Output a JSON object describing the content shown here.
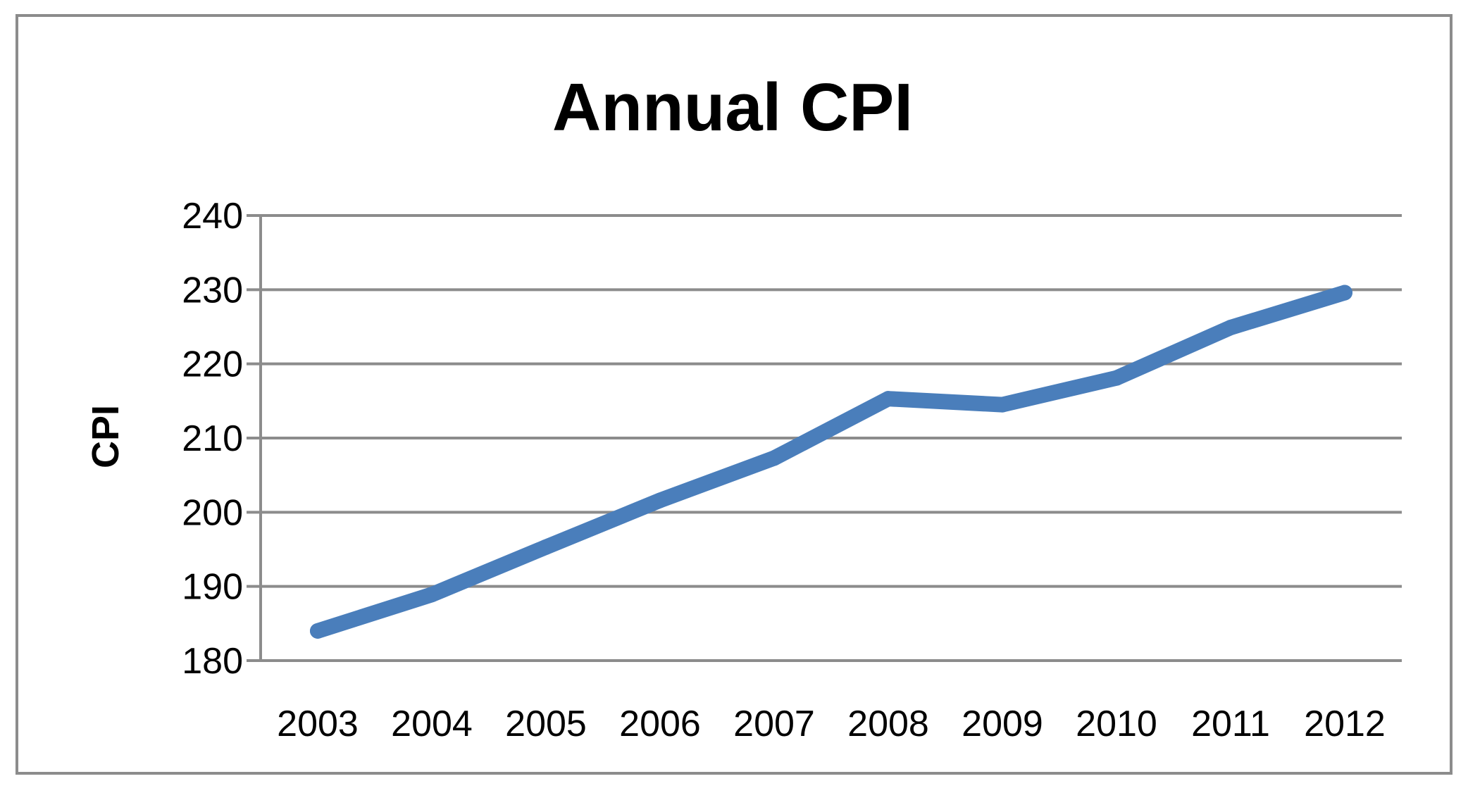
{
  "chart_data": {
    "type": "line",
    "title": "Annual CPI",
    "xlabel": "",
    "ylabel": "CPI",
    "categories": [
      "2003",
      "2004",
      "2005",
      "2006",
      "2007",
      "2008",
      "2009",
      "2010",
      "2011",
      "2012"
    ],
    "series": [
      {
        "values": [
          184.0,
          188.9,
          195.3,
          201.6,
          207.3,
          215.3,
          214.5,
          218.1,
          224.9,
          229.6
        ],
        "color": "#4a7ebb"
      }
    ],
    "ylim": [
      180,
      240
    ],
    "yticks": [
      180,
      190,
      200,
      210,
      220,
      230,
      240
    ],
    "grid": true,
    "legend": "none"
  }
}
